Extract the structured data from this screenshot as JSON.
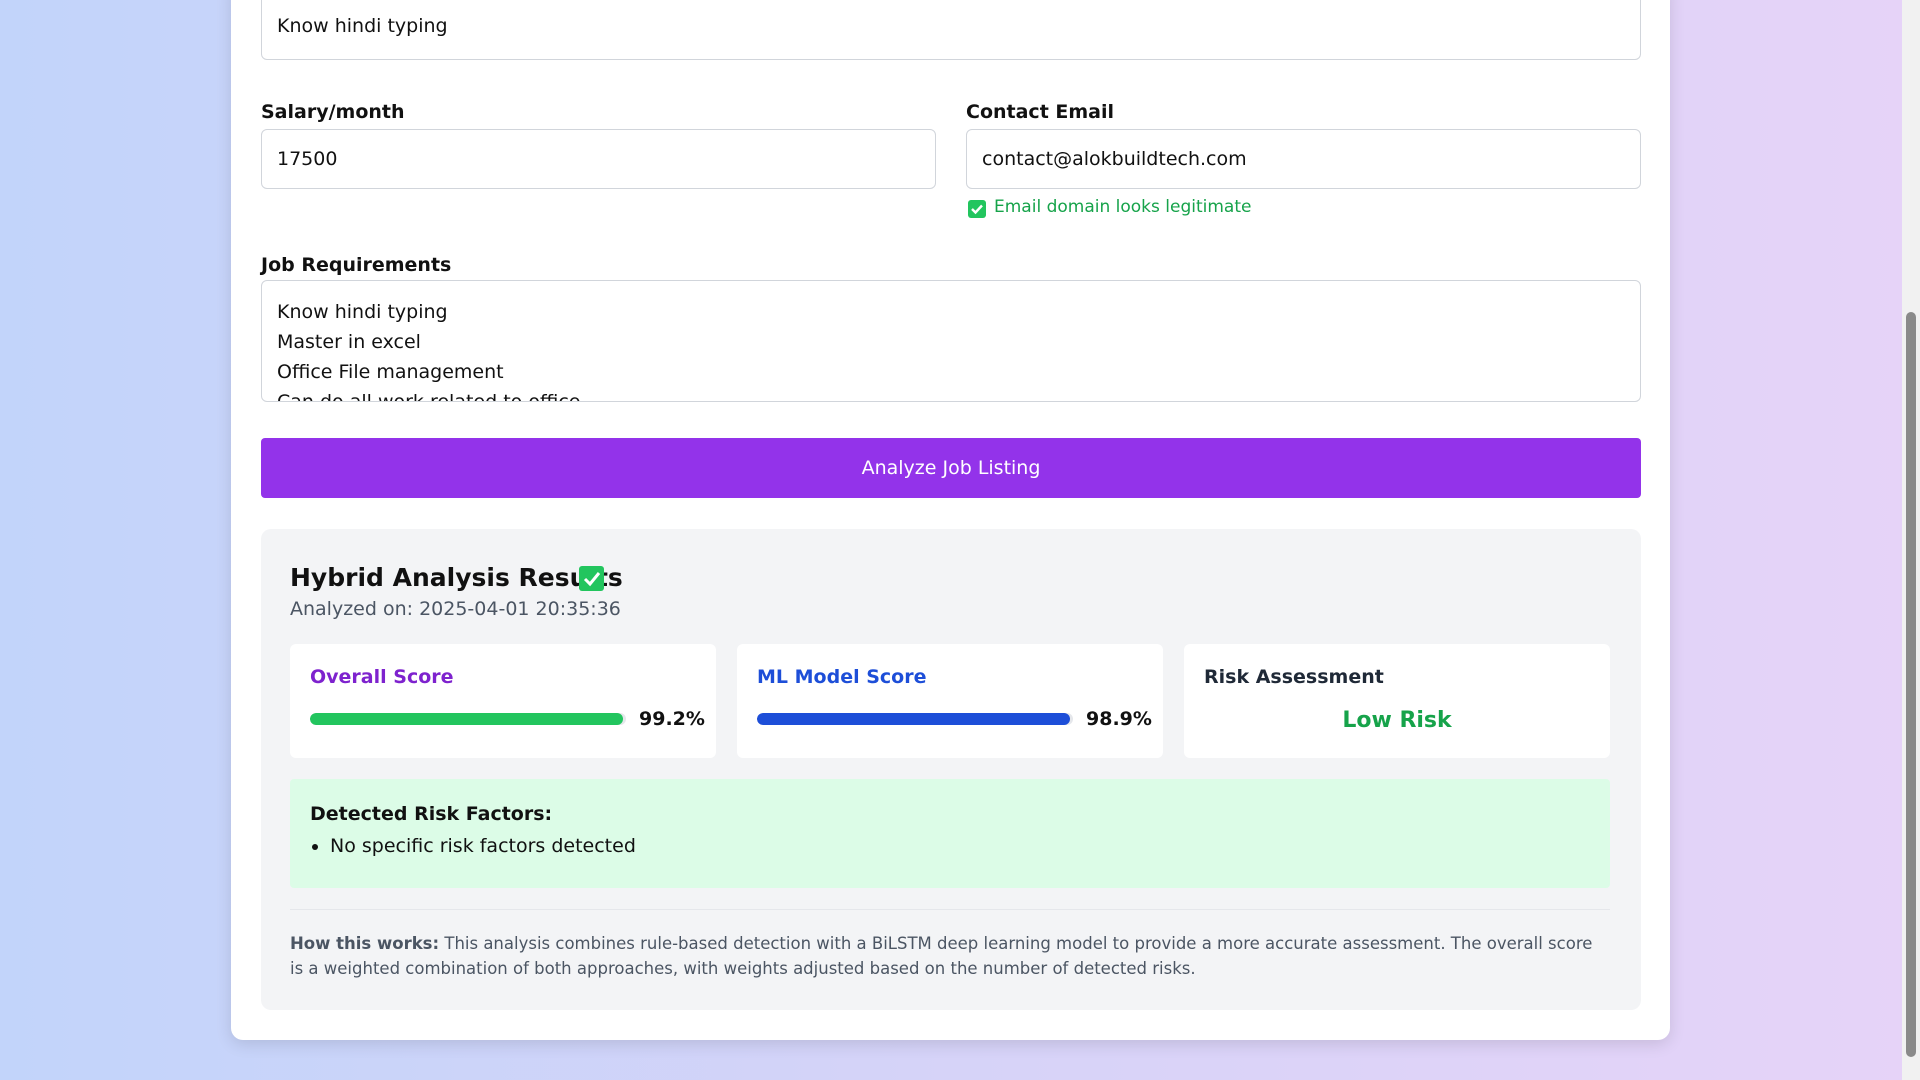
{
  "top_textarea": {
    "text": "Know hindi typing"
  },
  "salary": {
    "label": "Salary/month",
    "value": "17500"
  },
  "contact_email": {
    "label": "Contact Email",
    "value": "contact@alokbuildtech.com",
    "check": "Email domain looks legitimate"
  },
  "job_requirements": {
    "label": "Job Requirements",
    "lines": [
      "Know hindi typing",
      "Master in excel",
      "Office File management",
      "Can do all work related to office"
    ]
  },
  "button": "Analyze Job Listing",
  "results": {
    "title": "Hybrid Analysis Results",
    "analyzed_on": "Analyzed on: 2025-04-01 20:35:36",
    "overall_score": {
      "label": "Overall Score",
      "value": 99.2,
      "value_label": "99.2%"
    },
    "ml_score": {
      "label": "ML Model Score",
      "value": 98.9,
      "value_label": "98.9%"
    },
    "risk": {
      "label": "Risk Assessment",
      "value": "Low Risk"
    },
    "risk_factors": {
      "title": "Detected Risk Factors:",
      "items": [
        "No specific risk factors detected"
      ]
    },
    "how_title": "How this works:",
    "how_text": "This analysis combines rule-based detection with a BiLSTM deep learning model to provide a more accurate assessment. The overall score is a weighted combination of both approaches, with weights adjusted based on the number of detected risks."
  }
}
